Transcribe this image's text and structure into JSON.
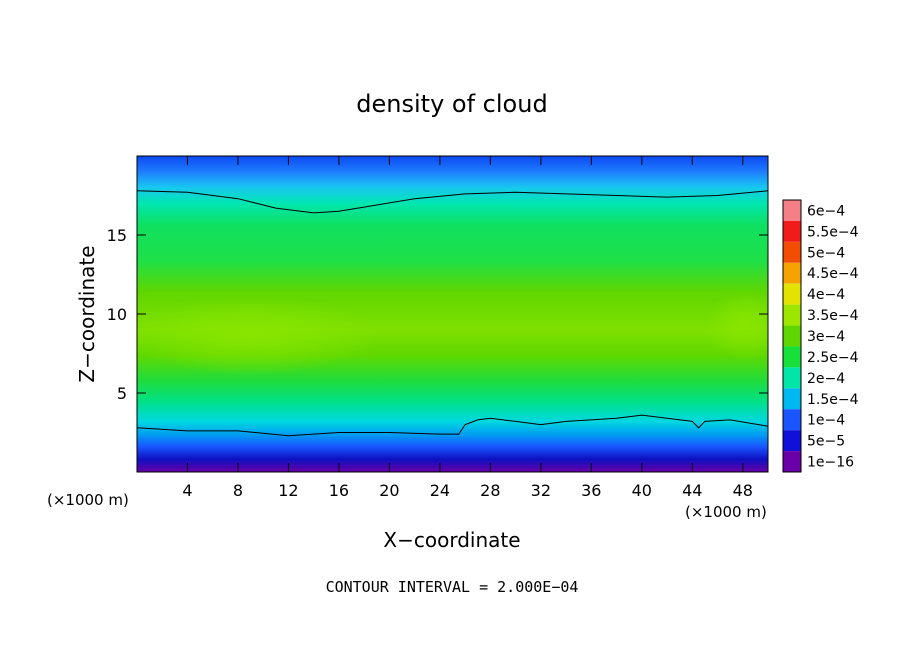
{
  "chart_data": {
    "type": "heatmap",
    "title": "density of cloud",
    "xlabel": "X−coordinate",
    "ylabel": "Z−coordinate",
    "x_unit_left": "(×1000 m)",
    "x_unit_right": "(×1000 m)",
    "xlim": [
      0,
      50
    ],
    "ylim": [
      0,
      20
    ],
    "x_ticks": [
      4,
      8,
      12,
      16,
      20,
      24,
      28,
      32,
      36,
      40,
      44,
      48
    ],
    "y_ticks": [
      5,
      10,
      15
    ],
    "footer": "CONTOUR INTERVAL = 2.000E−04",
    "colorbar": {
      "labels": [
        "6e−4",
        "5.5e−4",
        "5e−4",
        "4.5e−4",
        "4e−4",
        "3.5e−4",
        "3e−4",
        "2.5e−4",
        "2e−4",
        "1.5e−4",
        "1e−4",
        "5e−5",
        "1e−16"
      ],
      "levels": [
        0.0006,
        0.00055,
        0.0005,
        0.00045,
        0.0004,
        0.00035,
        0.0003,
        0.00025,
        0.0002,
        0.00015,
        0.0001,
        5e-05,
        1e-16
      ],
      "colors": [
        "#f57f86",
        "#f01b1b",
        "#f24d00",
        "#f5a300",
        "#e3e300",
        "#9ee600",
        "#5fd600",
        "#18e03a",
        "#00e6a8",
        "#00b8f0",
        "#1a55ff",
        "#1010d8",
        "#6a00a8"
      ]
    },
    "contour_lines": [
      {
        "level": 0.0002,
        "points": [
          [
            0,
            17.8
          ],
          [
            4,
            17.7
          ],
          [
            8,
            17.3
          ],
          [
            11,
            16.7
          ],
          [
            14,
            16.4
          ],
          [
            16,
            16.5
          ],
          [
            19,
            16.9
          ],
          [
            22,
            17.3
          ],
          [
            26,
            17.6
          ],
          [
            30,
            17.7
          ],
          [
            34,
            17.6
          ],
          [
            38,
            17.5
          ],
          [
            42,
            17.4
          ],
          [
            46,
            17.5
          ],
          [
            50,
            17.8
          ]
        ]
      },
      {
        "level": 0.0002,
        "points": [
          [
            0,
            2.8
          ],
          [
            4,
            2.6
          ],
          [
            8,
            2.6
          ],
          [
            12,
            2.3
          ],
          [
            16,
            2.5
          ],
          [
            20,
            2.5
          ],
          [
            24,
            2.4
          ],
          [
            25.5,
            2.4
          ],
          [
            26,
            3.0
          ],
          [
            27,
            3.3
          ],
          [
            28,
            3.4
          ],
          [
            30,
            3.2
          ],
          [
            32,
            3.0
          ],
          [
            34,
            3.2
          ],
          [
            36,
            3.3
          ],
          [
            38,
            3.4
          ],
          [
            40,
            3.6
          ],
          [
            42,
            3.4
          ],
          [
            44,
            3.2
          ],
          [
            44.5,
            2.8
          ],
          [
            45,
            3.2
          ],
          [
            47,
            3.3
          ],
          [
            50,
            2.9
          ]
        ]
      }
    ]
  }
}
